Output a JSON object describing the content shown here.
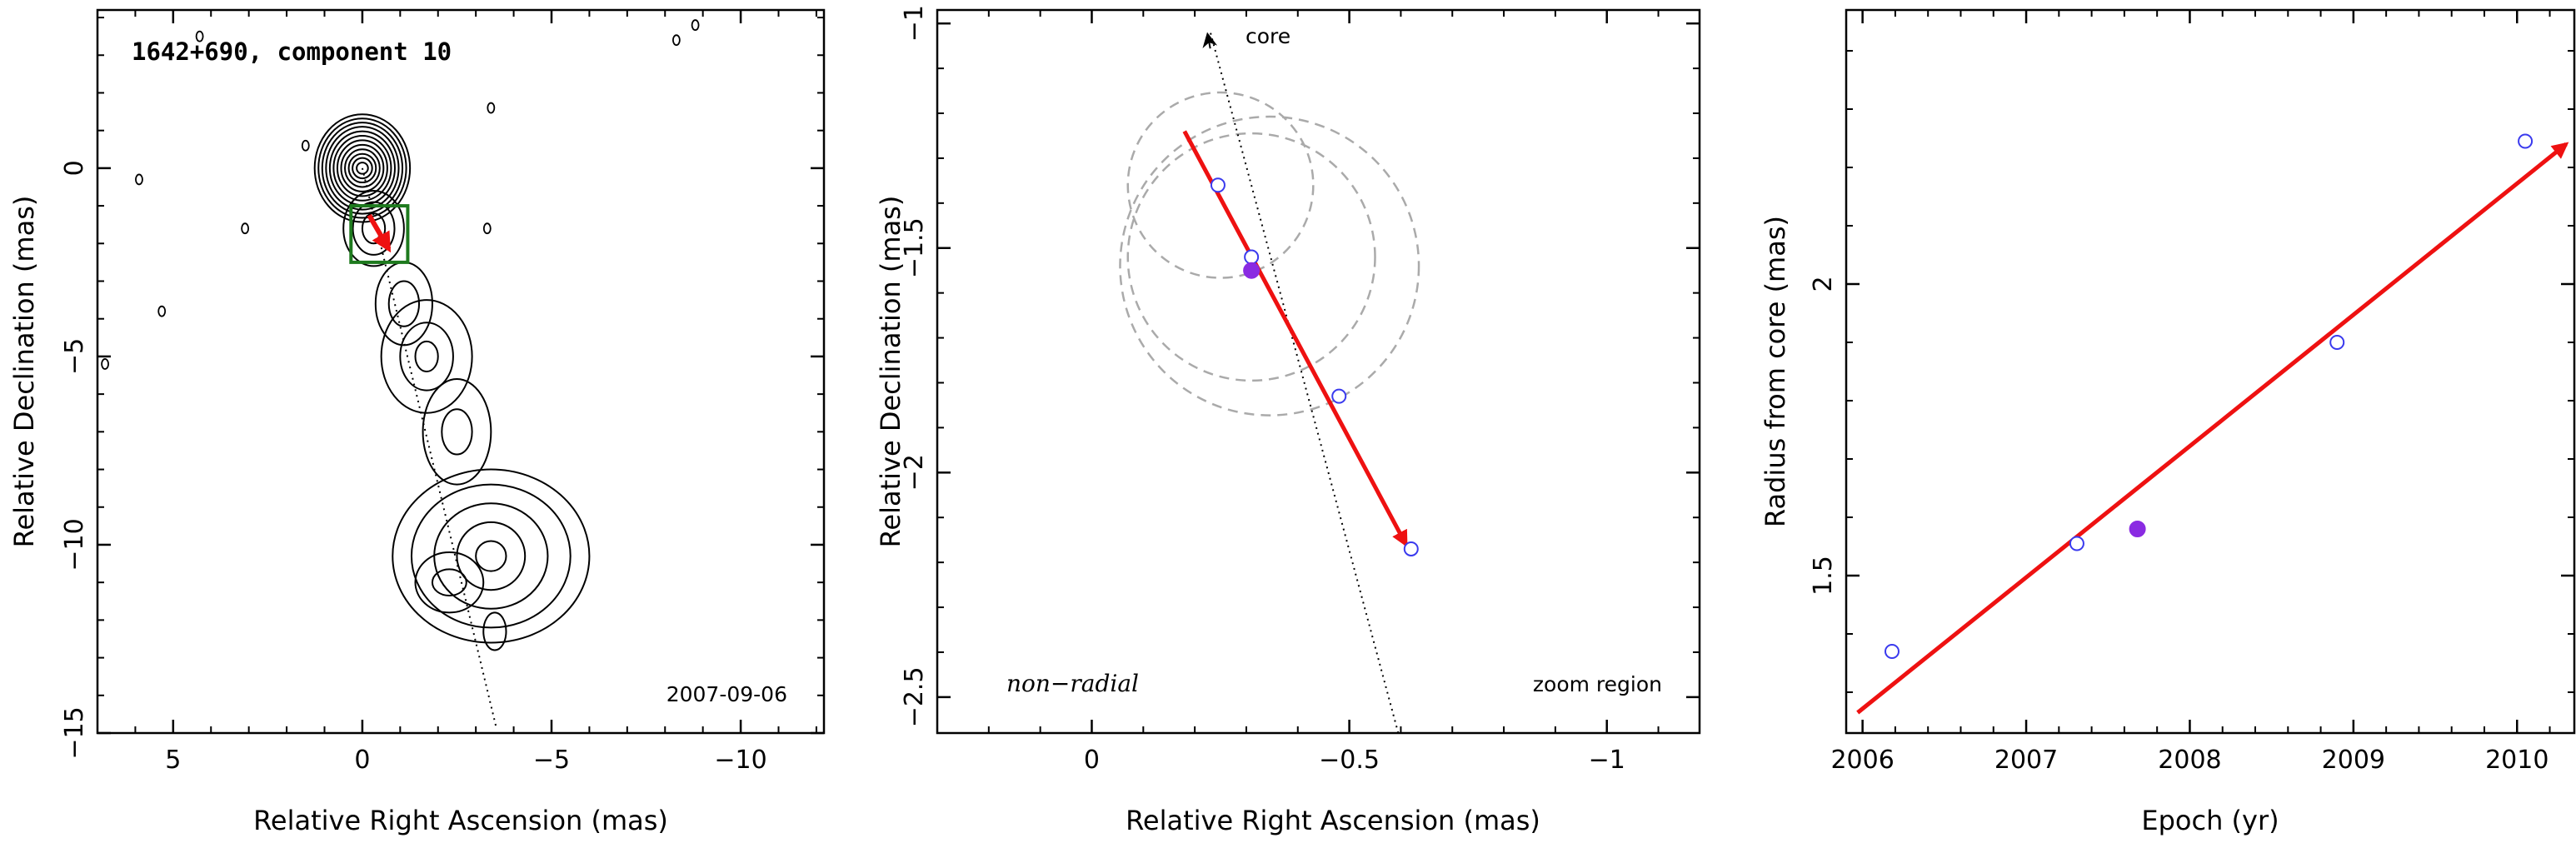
{
  "colors": {
    "trajectory": "#ee1111",
    "marker": "#3a3aee",
    "filled_marker": "#8a2be2",
    "box": "#1e7a1e",
    "circle": "#aaaaaa",
    "contour": "#000000"
  },
  "chart_data": [
    {
      "type": "contour",
      "title": "1642+690, component 10",
      "date_label": "2007-09-06",
      "xlabel": "Relative Right Ascension (mas)",
      "ylabel": "Relative Declination (mas)",
      "xlim": [
        7,
        -12.2
      ],
      "ylim": [
        -15,
        4.2
      ],
      "x_ticks": [
        "5",
        "0",
        "−5",
        "−10"
      ],
      "x_tick_values": [
        5,
        0,
        -5,
        -10
      ],
      "y_ticks": [
        "−15",
        "−10",
        "−5",
        "0"
      ],
      "y_tick_values": [
        -15,
        -10,
        -5,
        0
      ],
      "zoom_box": {
        "x": [
          -1.2,
          0.3
        ],
        "y": [
          -2.5,
          -1.0
        ]
      },
      "vector": {
        "from": [
          -0.18,
          -1.25
        ],
        "to": [
          -0.7,
          -2.15
        ]
      },
      "core_line": {
        "from": [
          0,
          0
        ],
        "to": [
          -3.55,
          -14.9
        ]
      },
      "contours": [
        {
          "cx": 0,
          "cy": 0,
          "rx": [
            0.15,
            0.26,
            0.36,
            0.46,
            0.56,
            0.66,
            0.76,
            0.86,
            0.96,
            1.06,
            1.16,
            1.26
          ],
          "ry": [
            0.15,
            0.27,
            0.38,
            0.5,
            0.62,
            0.74,
            0.86,
            0.98,
            1.1,
            1.21,
            1.32,
            1.43
          ]
        },
        {
          "cx": -0.3,
          "cy": -1.6,
          "rx": [
            0.3,
            0.55,
            0.8
          ],
          "ry": [
            0.4,
            0.7,
            1.0
          ]
        },
        {
          "cx": -1.1,
          "cy": -3.6,
          "rx": [
            0.4,
            0.75
          ],
          "ry": [
            0.6,
            1.1
          ]
        },
        {
          "cx": -1.7,
          "cy": -5.0,
          "rx": [
            0.3,
            0.7,
            1.2
          ],
          "ry": [
            0.4,
            0.9,
            1.5
          ]
        },
        {
          "cx": -2.5,
          "cy": -7.0,
          "rx": [
            0.4,
            0.9
          ],
          "ry": [
            0.6,
            1.4
          ]
        },
        {
          "cx": -3.4,
          "cy": -10.3,
          "rx": [
            0.4,
            0.9,
            1.5,
            2.1,
            2.6
          ],
          "ry": [
            0.4,
            0.9,
            1.4,
            1.9,
            2.3
          ]
        },
        {
          "cx": -2.3,
          "cy": -11.0,
          "rx": [
            0.45,
            0.9
          ],
          "ry": [
            0.35,
            0.8
          ]
        },
        {
          "cx": -3.5,
          "cy": -12.3,
          "rx": [
            0.3
          ],
          "ry": [
            0.5
          ]
        }
      ],
      "noise_blobs": [
        {
          "x": 5.9,
          "y": -0.3
        },
        {
          "x": 5.3,
          "y": -3.8
        },
        {
          "x": 3.1,
          "y": -1.6
        },
        {
          "x": 1.5,
          "y": 0.6
        },
        {
          "x": -3.3,
          "y": -1.6
        },
        {
          "x": -3.4,
          "y": 1.6
        },
        {
          "x": -8.8,
          "y": 3.8
        },
        {
          "x": -8.3,
          "y": 3.4
        },
        {
          "x": 4.3,
          "y": 3.5
        },
        {
          "x": 6.8,
          "y": -5.2
        }
      ]
    },
    {
      "type": "scatter",
      "xlabel": "Relative Right Ascension (mas)",
      "ylabel": "Relative Declination (mas)",
      "xlim": [
        0.3,
        -1.18
      ],
      "ylim": [
        -2.58,
        -0.97
      ],
      "x_ticks": [
        "0",
        "−0.5",
        "−1"
      ],
      "x_tick_values": [
        0,
        -0.5,
        -1
      ],
      "y_ticks": [
        "−2.5",
        "−2",
        "−1.5",
        "−1"
      ],
      "y_tick_values": [
        -2.5,
        -2,
        -1.5,
        -1
      ],
      "core_label": "core",
      "annotation_left": "non−radial",
      "annotation_right": "zoom region",
      "points": [
        {
          "x": -0.245,
          "y": -1.36,
          "filled": false
        },
        {
          "x": -0.31,
          "y": -1.52,
          "filled": false
        },
        {
          "x": -0.31,
          "y": -1.55,
          "filled": true
        },
        {
          "x": -0.48,
          "y": -1.83,
          "filled": false
        },
        {
          "x": -0.62,
          "y": -2.17,
          "filled": false
        }
      ],
      "circles": [
        {
          "x": -0.25,
          "y": -1.36,
          "r": 0.18
        },
        {
          "x": -0.31,
          "y": -1.52,
          "r": 0.24
        },
        {
          "x": -0.345,
          "y": -1.54,
          "r": 0.29
        }
      ],
      "vector": {
        "from": [
          -0.18,
          -1.24
        ],
        "to": [
          -0.61,
          -2.16
        ]
      },
      "core_line": {
        "from": [
          -0.595,
          -2.58
        ],
        "to": [
          -0.23,
          -1.0
        ]
      }
    },
    {
      "type": "scatter",
      "xlabel": "Epoch (yr)",
      "ylabel": "Radius from core (mas)",
      "xlim": [
        2005.9,
        2010.35
      ],
      "ylim": [
        1.23,
        2.47
      ],
      "x_ticks": [
        "2006",
        "2007",
        "2008",
        "2009",
        "2010"
      ],
      "x_tick_values": [
        2006,
        2007,
        2008,
        2009,
        2010
      ],
      "y_ticks": [
        "1.5",
        "2"
      ],
      "y_tick_values": [
        1.5,
        2
      ],
      "points": [
        {
          "x": 2006.18,
          "y": 1.37,
          "filled": false
        },
        {
          "x": 2007.31,
          "y": 1.555,
          "filled": false
        },
        {
          "x": 2007.68,
          "y": 1.58,
          "filled": true
        },
        {
          "x": 2008.9,
          "y": 1.9,
          "filled": false
        },
        {
          "x": 2010.05,
          "y": 2.245,
          "filled": false
        }
      ],
      "fit": {
        "from": [
          2005.97,
          1.265
        ],
        "to": [
          2010.3,
          2.24
        ]
      }
    }
  ]
}
